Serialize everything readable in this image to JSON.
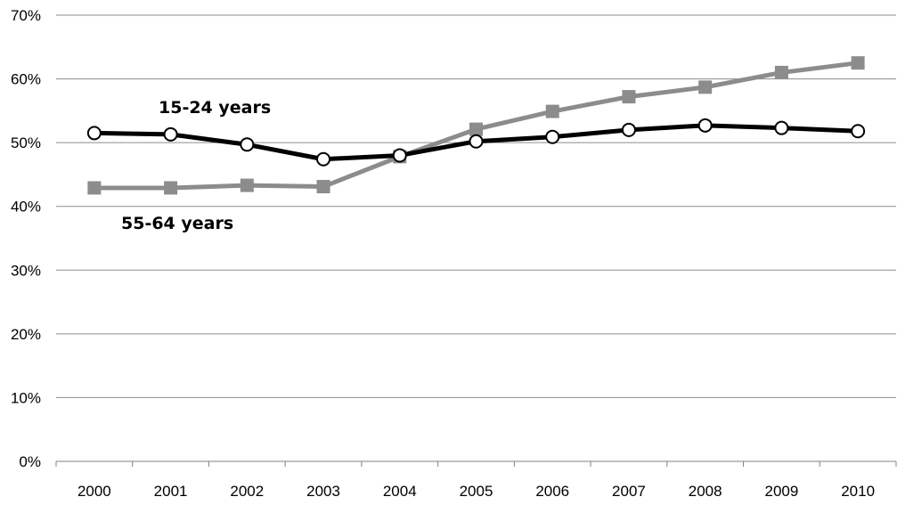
{
  "chart_data": {
    "type": "line",
    "title": "",
    "xlabel": "",
    "ylabel": "",
    "x": [
      "2000",
      "2001",
      "2002",
      "2003",
      "2004",
      "2005",
      "2006",
      "2007",
      "2008",
      "2009",
      "2010"
    ],
    "y_ticks": [
      "0%",
      "10%",
      "20%",
      "30%",
      "40%",
      "50%",
      "60%",
      "70%"
    ],
    "ylim": [
      0,
      70
    ],
    "grid": true,
    "legend": "none",
    "series": [
      {
        "name": "15-24 years",
        "values": [
          51.5,
          51.3,
          49.7,
          47.4,
          48.0,
          50.2,
          50.9,
          52.0,
          52.7,
          52.3,
          51.8
        ],
        "color": "#000000",
        "marker": "circle"
      },
      {
        "name": "55-64 years",
        "values": [
          42.9,
          42.9,
          43.3,
          43.1,
          47.8,
          52.1,
          54.9,
          57.2,
          58.7,
          61.0,
          62.5
        ],
        "color": "#8c8c8c",
        "marker": "square"
      }
    ]
  }
}
